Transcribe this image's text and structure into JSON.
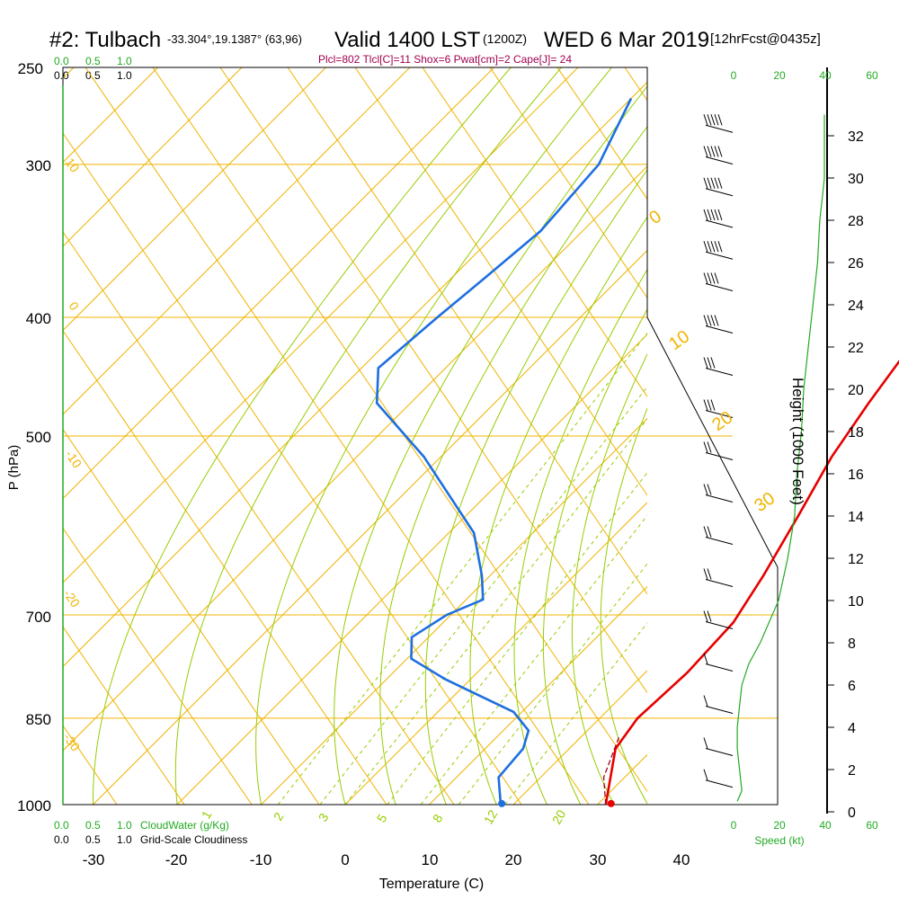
{
  "header": {
    "site": "#2: Tulbach",
    "coords": "-33.304°,19.1387° (63,96)",
    "valid": "Valid 1400 LST",
    "zulu": "(1200Z)",
    "date": "WED 6 Mar 2019",
    "forecast": "[12hrFcst@0435z]",
    "params": "Plcl=802 Tlcl[C]=11 Shox=6 Pwat[cm]=2 Cape[J]= 24"
  },
  "axes": {
    "xlabel": "Temperature (C)",
    "ylabel": "P (hPa)",
    "height_label": "Height (1000 Feet)",
    "speed_label": "Speed (kt)",
    "cloudwater_label": "CloudWater (g/Kg)",
    "cloudiness_label": "Grid-Scale Cloudiness"
  },
  "colors": {
    "isotherm": "#f0b400",
    "mixing_ratio": "#98cc00",
    "temperature": "#e60000",
    "dewpoint": "#1e6fe0",
    "green_text": "#22aa22",
    "title_magenta": "#a00050"
  },
  "chart_data": {
    "type": "line",
    "title": "#2: Tulbach",
    "pressure_ticks": [
      250,
      300,
      400,
      500,
      700,
      850,
      1000
    ],
    "temperature_ticks": [
      -30,
      -20,
      -10,
      0,
      10,
      20,
      30,
      40
    ],
    "xlim": [
      -35,
      36
    ],
    "ylim": [
      1000,
      250
    ],
    "isotherm_labels": [
      "10",
      "0",
      "-10",
      "-20",
      "-30",
      "0",
      "10",
      "20",
      "30"
    ],
    "mixing_ratio_labels": [
      "1",
      "2",
      "3",
      "5",
      "8",
      "12",
      "20"
    ],
    "height_ticks": [
      0,
      2,
      4,
      6,
      8,
      10,
      12,
      14,
      16,
      18,
      20,
      22,
      24,
      26,
      28,
      30,
      32
    ],
    "cloud_ticks_top": [
      "0.0",
      "0.5",
      "1.0"
    ],
    "cloud_ticks_bottom": [
      "0.0",
      "0.5",
      "1.0"
    ],
    "speed_ticks": [
      "0",
      "20",
      "40",
      "60"
    ],
    "series": [
      {
        "name": "Temperature",
        "color": "#e60000",
        "points": [
          [
            31.0,
            1000
          ],
          [
            25.5,
            900
          ],
          [
            24.5,
            850
          ],
          [
            25.0,
            780
          ],
          [
            24.5,
            710
          ],
          [
            22.5,
            650
          ],
          [
            19.5,
            580
          ],
          [
            16.5,
            520
          ],
          [
            14.5,
            470
          ],
          [
            13.0,
            430
          ],
          [
            10.5,
            400
          ],
          [
            6.5,
            350
          ],
          [
            2.0,
            300
          ],
          [
            -2.0,
            265
          ]
        ]
      },
      {
        "name": "Dewpoint",
        "color": "#1e6fe0",
        "points": [
          [
            18.5,
            1000
          ],
          [
            15.0,
            950
          ],
          [
            14.5,
            900
          ],
          [
            13.0,
            870
          ],
          [
            9.0,
            840
          ],
          [
            -3.0,
            790
          ],
          [
            -9.5,
            760
          ],
          [
            -12.0,
            730
          ],
          [
            -10.5,
            700
          ],
          [
            -8.0,
            680
          ],
          [
            -11.0,
            650
          ],
          [
            -17.0,
            600
          ],
          [
            -32.0,
            520
          ],
          [
            -44.0,
            470
          ],
          [
            -48.0,
            440
          ],
          [
            -47.0,
            400
          ],
          [
            -46.0,
            370
          ],
          [
            -45.0,
            340
          ],
          [
            -46.0,
            300
          ],
          [
            -50.0,
            265
          ]
        ]
      },
      {
        "name": "Parcel",
        "color": "#a00020",
        "points": [
          [
            31.0,
            1000
          ],
          [
            27.5,
            950
          ],
          [
            24.5,
            880
          ]
        ]
      }
    ],
    "surface_points": [
      {
        "name": "surface-temperature",
        "t": 31.5,
        "p": 998,
        "color": "#e60000"
      },
      {
        "name": "surface-dewpoint",
        "t": 18.5,
        "p": 998,
        "color": "#1e6fe0"
      }
    ],
    "wind_profile": [
      {
        "height_kft": 32.5,
        "speed_kt": 55
      },
      {
        "height_kft": 31,
        "speed_kt": 55
      },
      {
        "height_kft": 29.5,
        "speed_kt": 55
      },
      {
        "height_kft": 28,
        "speed_kt": 50
      },
      {
        "height_kft": 26.5,
        "speed_kt": 45
      },
      {
        "height_kft": 25,
        "speed_kt": 40
      },
      {
        "height_kft": 23,
        "speed_kt": 35
      },
      {
        "height_kft": 21,
        "speed_kt": 30
      },
      {
        "height_kft": 19,
        "speed_kt": 25
      },
      {
        "height_kft": 17,
        "speed_kt": 20
      },
      {
        "height_kft": 15,
        "speed_kt": 20
      },
      {
        "height_kft": 13,
        "speed_kt": 20
      },
      {
        "height_kft": 11,
        "speed_kt": 15
      },
      {
        "height_kft": 9,
        "speed_kt": 15
      },
      {
        "height_kft": 7,
        "speed_kt": 10
      },
      {
        "height_kft": 5,
        "speed_kt": 10
      },
      {
        "height_kft": 3,
        "speed_kt": 5
      },
      {
        "height_kft": 1.5,
        "speed_kt": 5
      }
    ],
    "speed_profile": [
      [
        0.5,
        2
      ],
      [
        1,
        4
      ],
      [
        2,
        3
      ],
      [
        3,
        2
      ],
      [
        4,
        2
      ],
      [
        5,
        3
      ],
      [
        6,
        4
      ],
      [
        7,
        7
      ],
      [
        8,
        12
      ],
      [
        10,
        20
      ],
      [
        12,
        24
      ],
      [
        14,
        27
      ],
      [
        16,
        28
      ],
      [
        18,
        30
      ],
      [
        20,
        31
      ],
      [
        22,
        33
      ],
      [
        24,
        35
      ],
      [
        26,
        37
      ],
      [
        28,
        38
      ],
      [
        29,
        39
      ],
      [
        30,
        40
      ],
      [
        32,
        40
      ],
      [
        33,
        40
      ]
    ]
  }
}
